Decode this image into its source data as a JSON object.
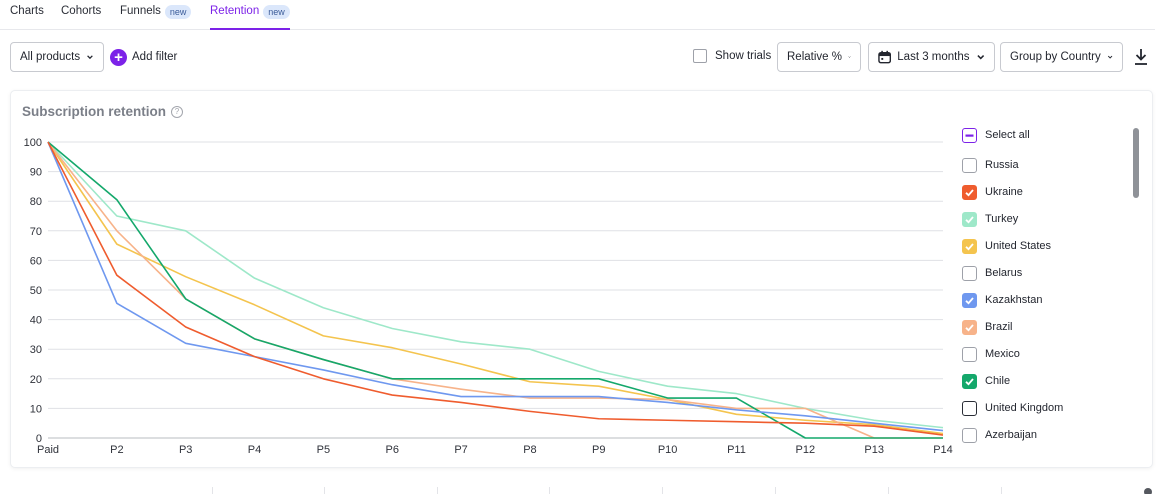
{
  "tabs": [
    {
      "label": "Charts",
      "badge": ""
    },
    {
      "label": "Cohorts",
      "badge": ""
    },
    {
      "label": "Funnels",
      "badge": "new"
    },
    {
      "label": "Retention",
      "badge": "new"
    }
  ],
  "active_tab": "Retention",
  "toolbar": {
    "products_label": "All products",
    "add_filter_label": "Add filter",
    "show_trials_label": "Show trials",
    "show_trials_checked": false,
    "mode_label": "Relative %",
    "date_range_label": "Last 3 months",
    "group_by_label": "Group by Country"
  },
  "card": {
    "title": "Subscription retention"
  },
  "legend": {
    "select_all_label": "Select all",
    "items": [
      {
        "label": "Russia",
        "checked": false,
        "color": "#9ea1a9"
      },
      {
        "label": "Ukraine",
        "checked": true,
        "color": "#ef5c2e"
      },
      {
        "label": "Turkey",
        "checked": true,
        "color": "#9ee8c9"
      },
      {
        "label": "United States",
        "checked": true,
        "color": "#f4c44e"
      },
      {
        "label": "Belarus",
        "checked": false,
        "color": "#9ea1a9"
      },
      {
        "label": "Kazakhstan",
        "checked": true,
        "color": "#6f98ef"
      },
      {
        "label": "Brazil",
        "checked": true,
        "color": "#f7b38a"
      },
      {
        "label": "Mexico",
        "checked": false,
        "color": "#9ea1a9"
      },
      {
        "label": "Chile",
        "checked": true,
        "color": "#14a86b"
      },
      {
        "label": "United Kingdom",
        "checked": false,
        "color": "#2a2d36"
      },
      {
        "label": "Azerbaijan",
        "checked": false,
        "color": "#9ea1a9"
      }
    ]
  },
  "chart_data": {
    "type": "line",
    "title": "Subscription retention",
    "x": [
      "Paid",
      "P2",
      "P3",
      "P4",
      "P5",
      "P6",
      "P7",
      "P8",
      "P9",
      "P10",
      "P11",
      "P12",
      "P13",
      "P14"
    ],
    "ylim": [
      0,
      100
    ],
    "yticks": [
      0,
      10,
      20,
      30,
      40,
      50,
      60,
      70,
      80,
      90,
      100
    ],
    "grid": true,
    "legend_position": "right",
    "series": [
      {
        "name": "Turkey",
        "color": "#9ee8c9",
        "values": [
          100,
          75,
          70,
          54,
          44,
          37,
          32.5,
          30,
          22.5,
          17.5,
          15,
          10,
          6,
          3.5
        ]
      },
      {
        "name": "United States",
        "color": "#f4c44e",
        "values": [
          100,
          65.5,
          54.5,
          45,
          34.5,
          30.5,
          25,
          19,
          17.5,
          13,
          8,
          6,
          4.5,
          1.5
        ]
      },
      {
        "name": "Brazil",
        "color": "#f7b38a",
        "values": [
          100,
          70,
          47,
          33.5,
          26.5,
          20,
          16.5,
          13.5,
          13.5,
          13,
          10,
          10,
          0,
          0
        ]
      },
      {
        "name": "Chile",
        "color": "#14a86b",
        "values": [
          100,
          80.5,
          47,
          33.5,
          26.5,
          20,
          20,
          20,
          20,
          13.5,
          13.5,
          0,
          0,
          0
        ]
      },
      {
        "name": "Kazakhstan",
        "color": "#6f98ef",
        "values": [
          100,
          45.5,
          32,
          27.5,
          23,
          18,
          14,
          14,
          14,
          12,
          9.5,
          7.5,
          5,
          2.5
        ]
      },
      {
        "name": "Ukraine",
        "color": "#ef5c2e",
        "values": [
          100,
          55,
          37.5,
          27.5,
          20,
          14.5,
          12,
          9,
          6.5,
          6,
          5.5,
          5,
          4,
          1
        ]
      }
    ]
  }
}
